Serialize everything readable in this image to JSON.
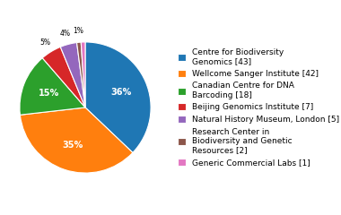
{
  "chart_data": {
    "type": "pie",
    "labels": [
      "Centre for Biodiversity\nGenomics [43]",
      "Wellcome Sanger Institute [42]",
      "Canadian Centre for DNA\nBarcoding [18]",
      "Beijing Genomics Institute [7]",
      "Natural History Museum, London [5]",
      "Research Center in\nBiodiversity and Genetic\nResources [2]",
      "Generic Commercial Labs [1]"
    ],
    "values": [
      36,
      35,
      15,
      5,
      4,
      1,
      1
    ],
    "value_labels": [
      "36%",
      "35%",
      "15%",
      "5%",
      "4%",
      "1%",
      null
    ],
    "data_labels": true
  }
}
